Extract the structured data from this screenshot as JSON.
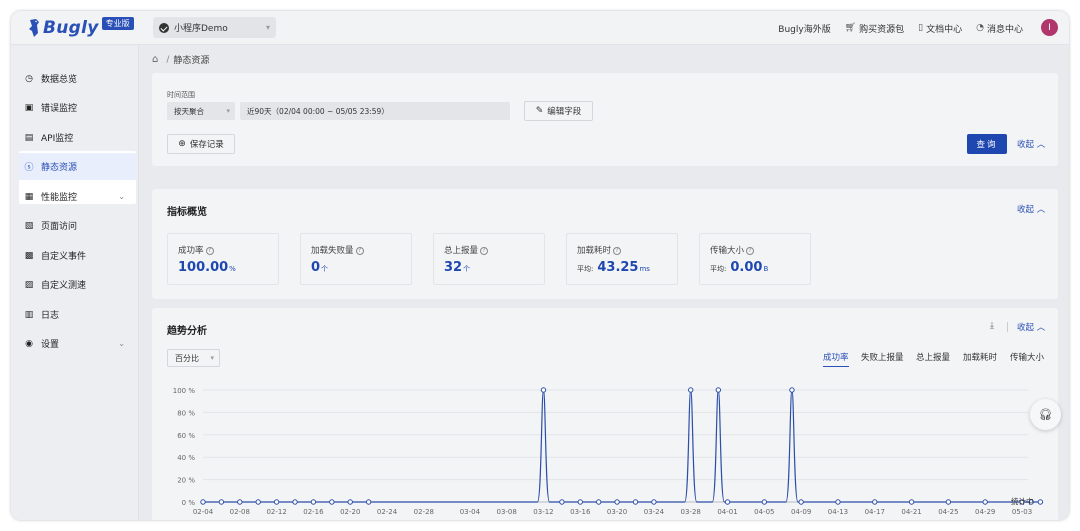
{
  "header": {
    "logo_text": "Bugly",
    "logo_badge": "专业版",
    "app_name": "小程序Demo",
    "links": [
      "Bugly海外版",
      "购买资源包",
      "文档中心",
      "消息中心"
    ],
    "avatar_letter": "I"
  },
  "sidebar": {
    "items": [
      {
        "label": "数据总览",
        "icon": "clock-icon"
      },
      {
        "label": "错误监控",
        "icon": "error-monitor-icon"
      },
      {
        "label": "API监控",
        "icon": "api-monitor-icon"
      },
      {
        "label": "静态资源",
        "icon": "static-resource-icon",
        "active": true
      },
      {
        "label": "性能监控",
        "icon": "performance-icon",
        "expandable": true
      },
      {
        "label": "页面访问",
        "icon": "page-visit-icon"
      },
      {
        "label": "自定义事件",
        "icon": "custom-event-icon"
      },
      {
        "label": "自定义测速",
        "icon": "custom-speed-icon"
      },
      {
        "label": "日志",
        "icon": "log-icon"
      },
      {
        "label": "设置",
        "icon": "settings-icon",
        "expandable": true
      }
    ]
  },
  "breadcrumb": {
    "separator": "/",
    "current": "静态资源"
  },
  "filter": {
    "time_label": "时间范围",
    "aggregation": "按天聚合",
    "range": "近90天（02/04 00:00 ~ 05/05 23:59）",
    "edit_fields": "编辑字段",
    "save_record": "保存记录",
    "query": "查询",
    "collapse": "收起"
  },
  "overview": {
    "title": "指标概览",
    "collapse": "收起",
    "metrics": [
      {
        "label": "成功率",
        "value": "100.00",
        "unit": "%",
        "prefix": ""
      },
      {
        "label": "加载失败量",
        "value": "0",
        "unit": "个",
        "prefix": ""
      },
      {
        "label": "总上报量",
        "value": "32",
        "unit": "个",
        "prefix": ""
      },
      {
        "label": "加载耗时",
        "value": "43.25",
        "unit": "ms",
        "prefix": "平均:"
      },
      {
        "label": "传输大小",
        "value": "0.00",
        "unit": "B",
        "prefix": "平均:"
      }
    ]
  },
  "trend": {
    "title": "趋势分析",
    "collapse": "收起",
    "mode": "百分比",
    "tabs": [
      "成功率",
      "失败上报量",
      "总上报量",
      "加载耗时",
      "传输大小"
    ],
    "active_tab": 0,
    "status": "统计中"
  },
  "colors": {
    "accent": "#2a4fb6",
    "query_button": "#1f47b0",
    "line": "#2c4ea8"
  },
  "chart_data": {
    "type": "line",
    "series": [
      {
        "values": [
          0,
          0,
          0,
          0,
          0,
          0,
          0,
          0,
          0,
          0,
          100,
          0,
          0,
          0,
          0,
          0,
          0,
          100,
          100,
          0,
          0,
          100,
          0,
          0,
          0,
          0,
          0,
          0,
          0,
          0,
          0
        ]
      }
    ],
    "x_points": [
      "02-04",
      "02-06",
      "02-08",
      "02-10",
      "02-12",
      "02-14",
      "02-16",
      "02-18",
      "02-20",
      "02-22",
      "03-12",
      "03-14",
      "03-16",
      "03-18",
      "03-20",
      "03-22",
      "03-24",
      "03-28",
      "03-31",
      "04-01",
      "04-05",
      "04-08",
      "04-09",
      "04-13",
      "04-17",
      "04-21",
      "04-25",
      "04-29",
      "05-03",
      "05-04",
      "05-05"
    ],
    "x_ticks": [
      "02-04",
      "02-08",
      "02-12",
      "02-16",
      "02-20",
      "02-24",
      "02-28",
      "03-04",
      "03-08",
      "03-12",
      "03-16",
      "03-20",
      "03-24",
      "03-28",
      "04-01",
      "04-05",
      "04-09",
      "04-13",
      "04-17",
      "04-21",
      "04-25",
      "04-29",
      "05-03"
    ],
    "y_ticks": [
      "0 %",
      "20 %",
      "40 %",
      "60 %",
      "80 %",
      "100 %"
    ],
    "ylim": [
      0,
      100
    ],
    "grid": true
  }
}
